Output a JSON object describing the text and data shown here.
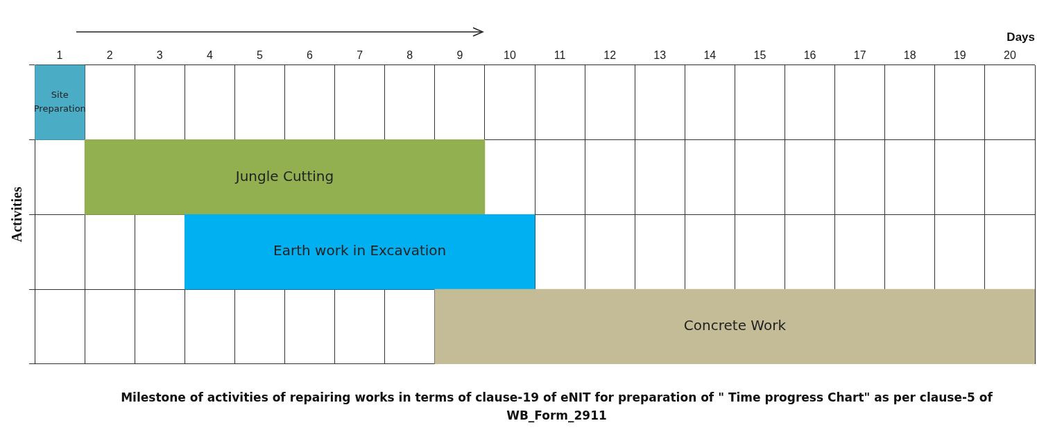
{
  "chart_data": {
    "type": "bar",
    "orientation": "horizontal",
    "xlabel": "Days",
    "ylabel": "Activities",
    "categories": [
      "Site Preparation",
      "Jungle Cutting",
      "Earth work in Excavation",
      "Concrete Work"
    ],
    "base": [
      0,
      1,
      3,
      8
    ],
    "values": [
      1,
      8,
      7,
      12
    ],
    "colors": [
      "#4bacc6",
      "#92b050",
      "#00b0f0",
      "#c4bc96"
    ],
    "xlim": [
      0,
      20
    ],
    "xticks": [
      {
        "value": 0,
        "label": null
      },
      {
        "value": 0.5,
        "label": "1"
      },
      {
        "value": 1,
        "label": null
      },
      {
        "value": 1.5,
        "label": "2"
      },
      {
        "value": 2,
        "label": null
      },
      {
        "value": 2.5,
        "label": "3"
      },
      {
        "value": 3,
        "label": null
      },
      {
        "value": 3.5,
        "label": "4"
      },
      {
        "value": 4,
        "label": null
      },
      {
        "value": 4.5,
        "label": "5"
      },
      {
        "value": 5,
        "label": null
      },
      {
        "value": 5.5,
        "label": "6"
      },
      {
        "value": 6,
        "label": null
      },
      {
        "value": 6.5,
        "label": "7"
      },
      {
        "value": 7,
        "label": null
      },
      {
        "value": 7.5,
        "label": "8"
      },
      {
        "value": 8,
        "label": null
      },
      {
        "value": 8.5,
        "label": "9"
      },
      {
        "value": 9,
        "label": null
      },
      {
        "value": 9.5,
        "label": "10"
      },
      {
        "value": 10,
        "label": null
      },
      {
        "value": 10.5,
        "label": "11"
      },
      {
        "value": 11,
        "label": null
      },
      {
        "value": 11.5,
        "label": "12"
      },
      {
        "value": 12,
        "label": null
      },
      {
        "value": 12.5,
        "label": "13"
      },
      {
        "value": 13,
        "label": null
      },
      {
        "value": 13.5,
        "label": "14"
      },
      {
        "value": 14,
        "label": null
      },
      {
        "value": 14.5,
        "label": "15"
      },
      {
        "value": 15,
        "label": null
      },
      {
        "value": 15.5,
        "label": "16"
      },
      {
        "value": 16,
        "label": null
      },
      {
        "value": 16.5,
        "label": "17"
      },
      {
        "value": 17,
        "label": null
      },
      {
        "value": 17.5,
        "label": "18"
      },
      {
        "value": 18,
        "label": null
      },
      {
        "value": 18.5,
        "label": "19"
      },
      {
        "value": 19,
        "label": null
      },
      {
        "value": 19.5,
        "label": "20"
      },
      {
        "value": 20,
        "label": null
      }
    ],
    "grid": true,
    "legend": false,
    "annotations": [
      "Milestone of activities of repairing works in terms of clause-19 of eNIT for preparation of \" Time progress Chart\" as per clause-5 of WB_Form_2911"
    ]
  }
}
